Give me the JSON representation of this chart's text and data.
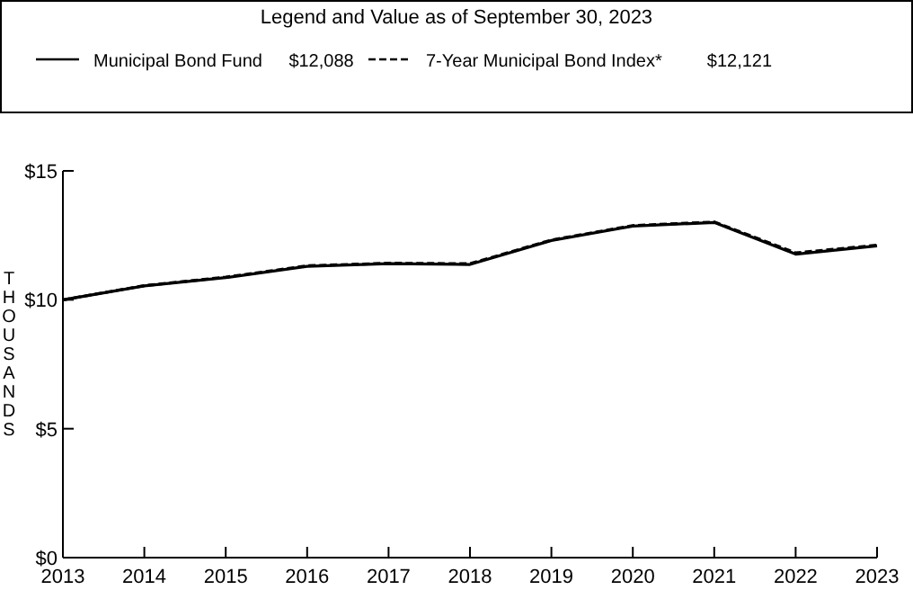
{
  "chart_data": {
    "type": "line",
    "title": "Legend and Value as of September 30, 2023",
    "ylabel": "THOUSANDS",
    "x": [
      2013,
      2014,
      2015,
      2016,
      2017,
      2018,
      2019,
      2020,
      2021,
      2022,
      2023
    ],
    "series": [
      {
        "name": "Municipal Bond Fund",
        "color": "#000000",
        "line_style": "solid",
        "values": [
          10.0,
          10.54,
          10.86,
          11.3,
          11.4,
          11.37,
          12.3,
          12.86,
          13.0,
          11.77,
          12.09
        ]
      },
      {
        "name": "7-Year Municipal Bond Index*",
        "color": "#000000",
        "line_style": "dashed",
        "values": [
          10.0,
          10.55,
          10.88,
          11.32,
          11.42,
          11.4,
          12.32,
          12.88,
          13.02,
          11.82,
          12.12
        ]
      }
    ],
    "annotations": [
      "$12,088",
      "$12,121"
    ],
    "xlim": [
      2013,
      2023
    ],
    "xticks": [
      2013,
      2014,
      2015,
      2016,
      2017,
      2018,
      2019,
      2020,
      2021,
      2022,
      2023
    ],
    "ylim": [
      0,
      15
    ],
    "yticks": [
      {
        "value": 0,
        "label": "$0"
      },
      {
        "value": 5,
        "label": "$5"
      },
      {
        "value": 10,
        "label": "$10"
      },
      {
        "value": 15,
        "label": "$15"
      }
    ],
    "legend": "top",
    "grid": false
  }
}
